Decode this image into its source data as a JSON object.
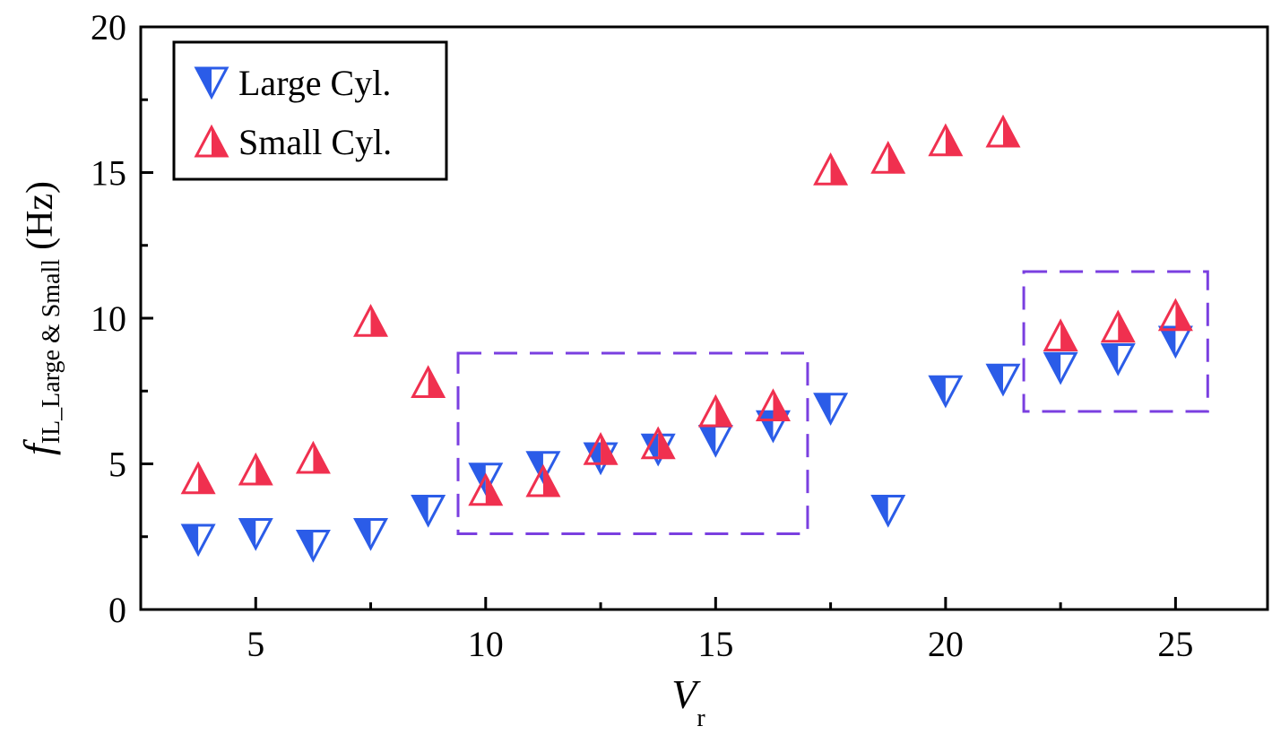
{
  "chart_data": {
    "type": "scatter",
    "title": "",
    "xlabel": {
      "main": "V",
      "subscript": "r"
    },
    "ylabel": {
      "main": "f",
      "subscript": "IL_Large & Small",
      "unit": "(Hz)"
    },
    "xlim": [
      2.5,
      27
    ],
    "ylim": [
      0,
      20
    ],
    "x_ticks": [
      5,
      10,
      15,
      20,
      25
    ],
    "y_ticks": [
      0,
      5,
      10,
      15,
      20
    ],
    "grid": false,
    "legend_position": "top-left",
    "series": [
      {
        "name": "Large Cyl.",
        "marker": "half-filled down-triangle",
        "color": "#2b5ce8",
        "points": [
          {
            "x": 3.75,
            "y": 2.4
          },
          {
            "x": 5.0,
            "y": 2.6
          },
          {
            "x": 6.25,
            "y": 2.2
          },
          {
            "x": 7.5,
            "y": 2.6
          },
          {
            "x": 8.75,
            "y": 3.4
          },
          {
            "x": 10.0,
            "y": 4.5
          },
          {
            "x": 11.25,
            "y": 4.9
          },
          {
            "x": 12.5,
            "y": 5.2
          },
          {
            "x": 13.75,
            "y": 5.5
          },
          {
            "x": 15.0,
            "y": 5.8
          },
          {
            "x": 16.25,
            "y": 6.3
          },
          {
            "x": 17.5,
            "y": 6.9
          },
          {
            "x": 18.75,
            "y": 3.4
          },
          {
            "x": 20.0,
            "y": 7.5
          },
          {
            "x": 21.25,
            "y": 7.9
          },
          {
            "x": 22.5,
            "y": 8.3
          },
          {
            "x": 23.75,
            "y": 8.6
          },
          {
            "x": 25.0,
            "y": 9.2
          }
        ]
      },
      {
        "name": "Small Cyl.",
        "marker": "half-filled up-triangle",
        "color": "#f0304f",
        "points": [
          {
            "x": 3.75,
            "y": 4.5
          },
          {
            "x": 5.0,
            "y": 4.8
          },
          {
            "x": 6.25,
            "y": 5.2
          },
          {
            "x": 7.5,
            "y": 9.9
          },
          {
            "x": 8.75,
            "y": 7.8
          },
          {
            "x": 10.0,
            "y": 4.1
          },
          {
            "x": 11.25,
            "y": 4.4
          },
          {
            "x": 12.5,
            "y": 5.5
          },
          {
            "x": 13.75,
            "y": 5.7
          },
          {
            "x": 15.0,
            "y": 6.8
          },
          {
            "x": 16.25,
            "y": 7.0
          },
          {
            "x": 17.5,
            "y": 15.1
          },
          {
            "x": 18.75,
            "y": 15.5
          },
          {
            "x": 20.0,
            "y": 16.1
          },
          {
            "x": 21.25,
            "y": 16.4
          },
          {
            "x": 22.5,
            "y": 9.4
          },
          {
            "x": 23.75,
            "y": 9.7
          },
          {
            "x": 25.0,
            "y": 10.1
          }
        ]
      }
    ],
    "annotations": [
      {
        "type": "dashed-region",
        "color": "#7a3fe0",
        "x_range": [
          9.4,
          17.0
        ],
        "y_range": [
          2.6,
          8.8
        ]
      },
      {
        "type": "dashed-region",
        "color": "#7a3fe0",
        "x_range": [
          21.7,
          25.7
        ],
        "y_range": [
          6.8,
          11.6
        ]
      }
    ]
  }
}
